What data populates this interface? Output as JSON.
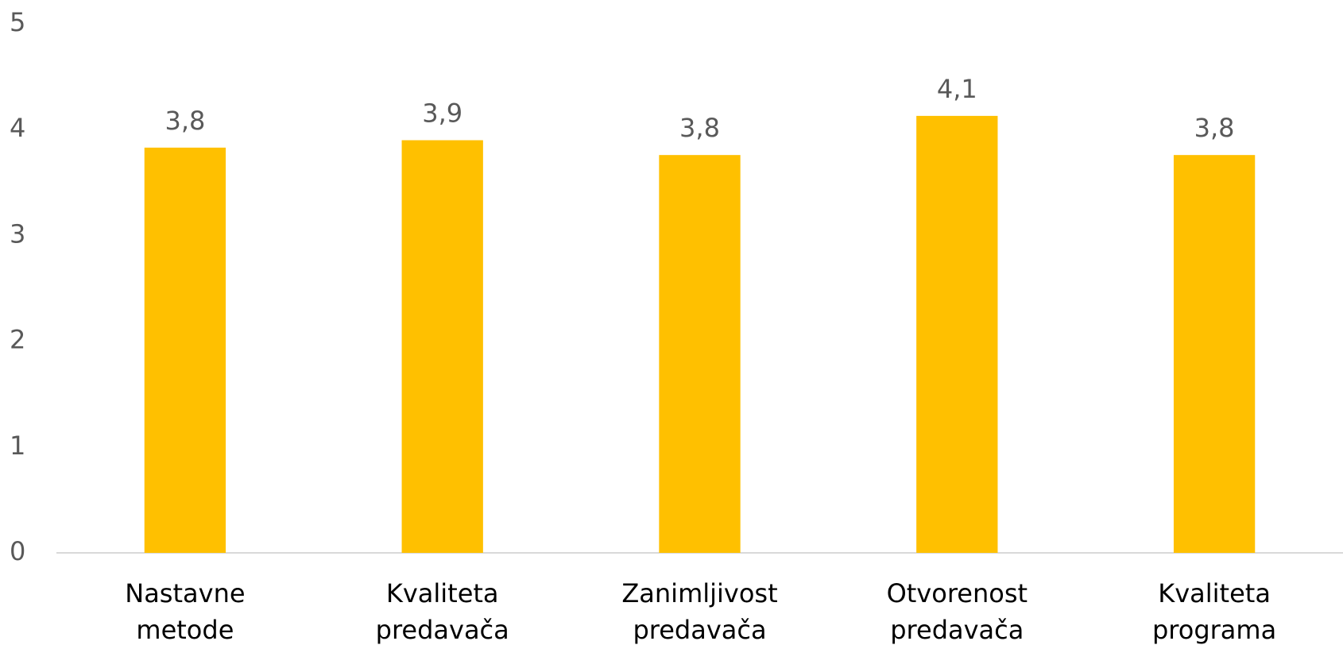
{
  "chart_data": {
    "type": "bar",
    "categories": [
      "Nastavne metode",
      "Kvaliteta predavača",
      "Zanimljivost predavača",
      "Otvorenost predavača",
      "Kvaliteta programa"
    ],
    "values": [
      3.83,
      3.9,
      3.76,
      4.13,
      3.76
    ],
    "value_labels": [
      "3,8",
      "3,9",
      "3,8",
      "4,1",
      "3,8"
    ],
    "color": "#ffc000",
    "ylim": [
      0,
      5
    ],
    "yticks": [
      0,
      1,
      2,
      3,
      4,
      5
    ],
    "grid": false
  }
}
